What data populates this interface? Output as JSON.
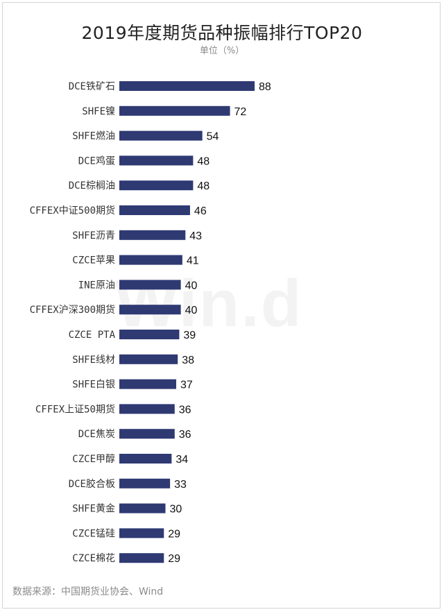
{
  "chart_data": {
    "type": "bar",
    "orientation": "horizontal",
    "title": "2019年度期货品种振幅排行TOP20",
    "subtitle": "单位（%）",
    "categories": [
      "DCE铁矿石",
      "SHFE镍",
      "SHFE燃油",
      "DCE鸡蛋",
      "DCE棕榈油",
      "CFFEX中证500期货",
      "SHFE沥青",
      "CZCE苹果",
      "INE原油",
      "CFFEX沪深300期货",
      "CZCE PTA",
      "SHFE线材",
      "SHFE白银",
      "CFFEX上证50期货",
      "DCE焦炭",
      "CZCE甲醇",
      "DCE胶合板",
      "SHFE黄金",
      "CZCE锰硅",
      "CZCE棉花"
    ],
    "values": [
      88,
      72,
      54,
      48,
      48,
      46,
      43,
      41,
      40,
      40,
      39,
      38,
      37,
      36,
      36,
      34,
      33,
      30,
      29,
      29
    ],
    "xlim": [
      0,
      88
    ],
    "grid": false,
    "bar_color": "#2f3a73"
  },
  "watermark": "Win.d",
  "source": "数据来源：中国期货业协会、Wind"
}
